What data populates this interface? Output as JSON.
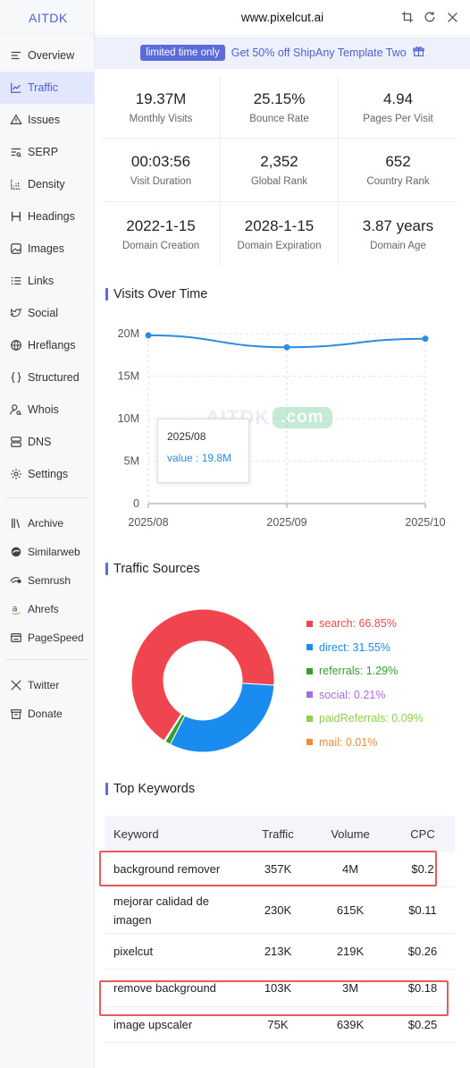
{
  "brand": "AITDK",
  "domain": "www.pixelcut.ai",
  "sidebar": {
    "items": [
      {
        "label": "Overview",
        "icon": "overview-icon"
      },
      {
        "label": "Traffic",
        "icon": "traffic-icon",
        "active": true
      },
      {
        "label": "Issues",
        "icon": "warning-icon"
      },
      {
        "label": "SERP",
        "icon": "serp-icon"
      },
      {
        "label": "Density",
        "icon": "density-icon"
      },
      {
        "label": "Headings",
        "icon": "heading-icon"
      },
      {
        "label": "Images",
        "icon": "image-icon"
      },
      {
        "label": "Links",
        "icon": "links-icon"
      },
      {
        "label": "Social",
        "icon": "social-icon"
      },
      {
        "label": "Hreflangs",
        "icon": "globe-icon"
      },
      {
        "label": "Structured",
        "icon": "braces-icon"
      },
      {
        "label": "Whois",
        "icon": "user-search-icon"
      },
      {
        "label": "DNS",
        "icon": "dns-icon"
      },
      {
        "label": "Settings",
        "icon": "gear-icon"
      }
    ],
    "tools": [
      {
        "label": "Archive",
        "icon": "archive-icon"
      },
      {
        "label": "Similarweb",
        "icon": "similarweb-icon"
      },
      {
        "label": "Semrush",
        "icon": "semrush-icon"
      },
      {
        "label": "Ahrefs",
        "icon": "ahrefs-icon"
      },
      {
        "label": "PageSpeed",
        "icon": "pagespeed-icon"
      }
    ],
    "social": [
      {
        "label": "Twitter",
        "icon": "x-twitter-icon"
      },
      {
        "label": "Donate",
        "icon": "donate-icon"
      }
    ]
  },
  "promo": {
    "tag": "limited time only",
    "message": "Get 50% off ShipAny Template Two"
  },
  "stats": [
    {
      "value": "19.37M",
      "label": "Monthly Visits"
    },
    {
      "value": "25.15%",
      "label": "Bounce Rate"
    },
    {
      "value": "4.94",
      "label": "Pages Per Visit"
    },
    {
      "value": "00:03:56",
      "label": "Visit Duration"
    },
    {
      "value": "2,352",
      "label": "Global Rank"
    },
    {
      "value": "652",
      "label": "Country Rank"
    },
    {
      "value": "2022-1-15",
      "label": "Domain Creation"
    },
    {
      "value": "2028-1-15",
      "label": "Domain Expiration"
    },
    {
      "value": "3.87 years",
      "label": "Domain Age"
    }
  ],
  "sections": {
    "visits": "Visits Over Time",
    "sources": "Traffic Sources",
    "keywords": "Top Keywords"
  },
  "watermark": {
    "main": "AITDK",
    "suffix": ".com"
  },
  "tooltip": {
    "date": "2025/08",
    "value": "value : 19.8M"
  },
  "chart_data": [
    {
      "type": "line",
      "title": "Visits Over Time",
      "x": [
        "2025/08",
        "2025/09",
        "2025/10"
      ],
      "series": [
        {
          "values": [
            19.8,
            18.4,
            19.4
          ]
        }
      ],
      "unit": "M",
      "y_ticks": [
        "0",
        "5M",
        "10M",
        "15M",
        "20M"
      ],
      "ylim": [
        0,
        20
      ],
      "grid": true,
      "color": "#2a8de0"
    },
    {
      "type": "pie",
      "title": "Traffic Sources",
      "slices": [
        {
          "name": "search",
          "label": "search: 66.85%",
          "value": 66.85,
          "color": "#f0454f"
        },
        {
          "name": "direct",
          "label": "direct: 31.55%",
          "value": 31.55,
          "color": "#1a8cf0"
        },
        {
          "name": "referrals",
          "label": "referrals: 1.29%",
          "value": 1.29,
          "color": "#33a02c"
        },
        {
          "name": "social",
          "label": "social: 0.21%",
          "value": 0.21,
          "color": "#a86be0"
        },
        {
          "name": "paidReferrals",
          "label": "paidReferrals: 0.09%",
          "value": 0.09,
          "color": "#8fcf4a"
        },
        {
          "name": "mail",
          "label": "mail: 0.01%",
          "value": 0.01,
          "color": "#f08a3c"
        }
      ]
    }
  ],
  "keywords": {
    "headers": [
      "Keyword",
      "Traffic",
      "Volume",
      "CPC"
    ],
    "rows": [
      {
        "keyword": "background remover",
        "traffic": "357K",
        "volume": "4M",
        "cpc": "$0.2",
        "highlighted": true
      },
      {
        "keyword": "mejorar calidad de imagen",
        "traffic": "230K",
        "volume": "615K",
        "cpc": "$0.11"
      },
      {
        "keyword": "pixelcut",
        "traffic": "213K",
        "volume": "219K",
        "cpc": "$0.26"
      },
      {
        "keyword": "remove background",
        "traffic": "103K",
        "volume": "3M",
        "cpc": "$0.18",
        "highlighted": true
      },
      {
        "keyword": "image upscaler",
        "traffic": "75K",
        "volume": "639K",
        "cpc": "$0.25"
      }
    ]
  }
}
